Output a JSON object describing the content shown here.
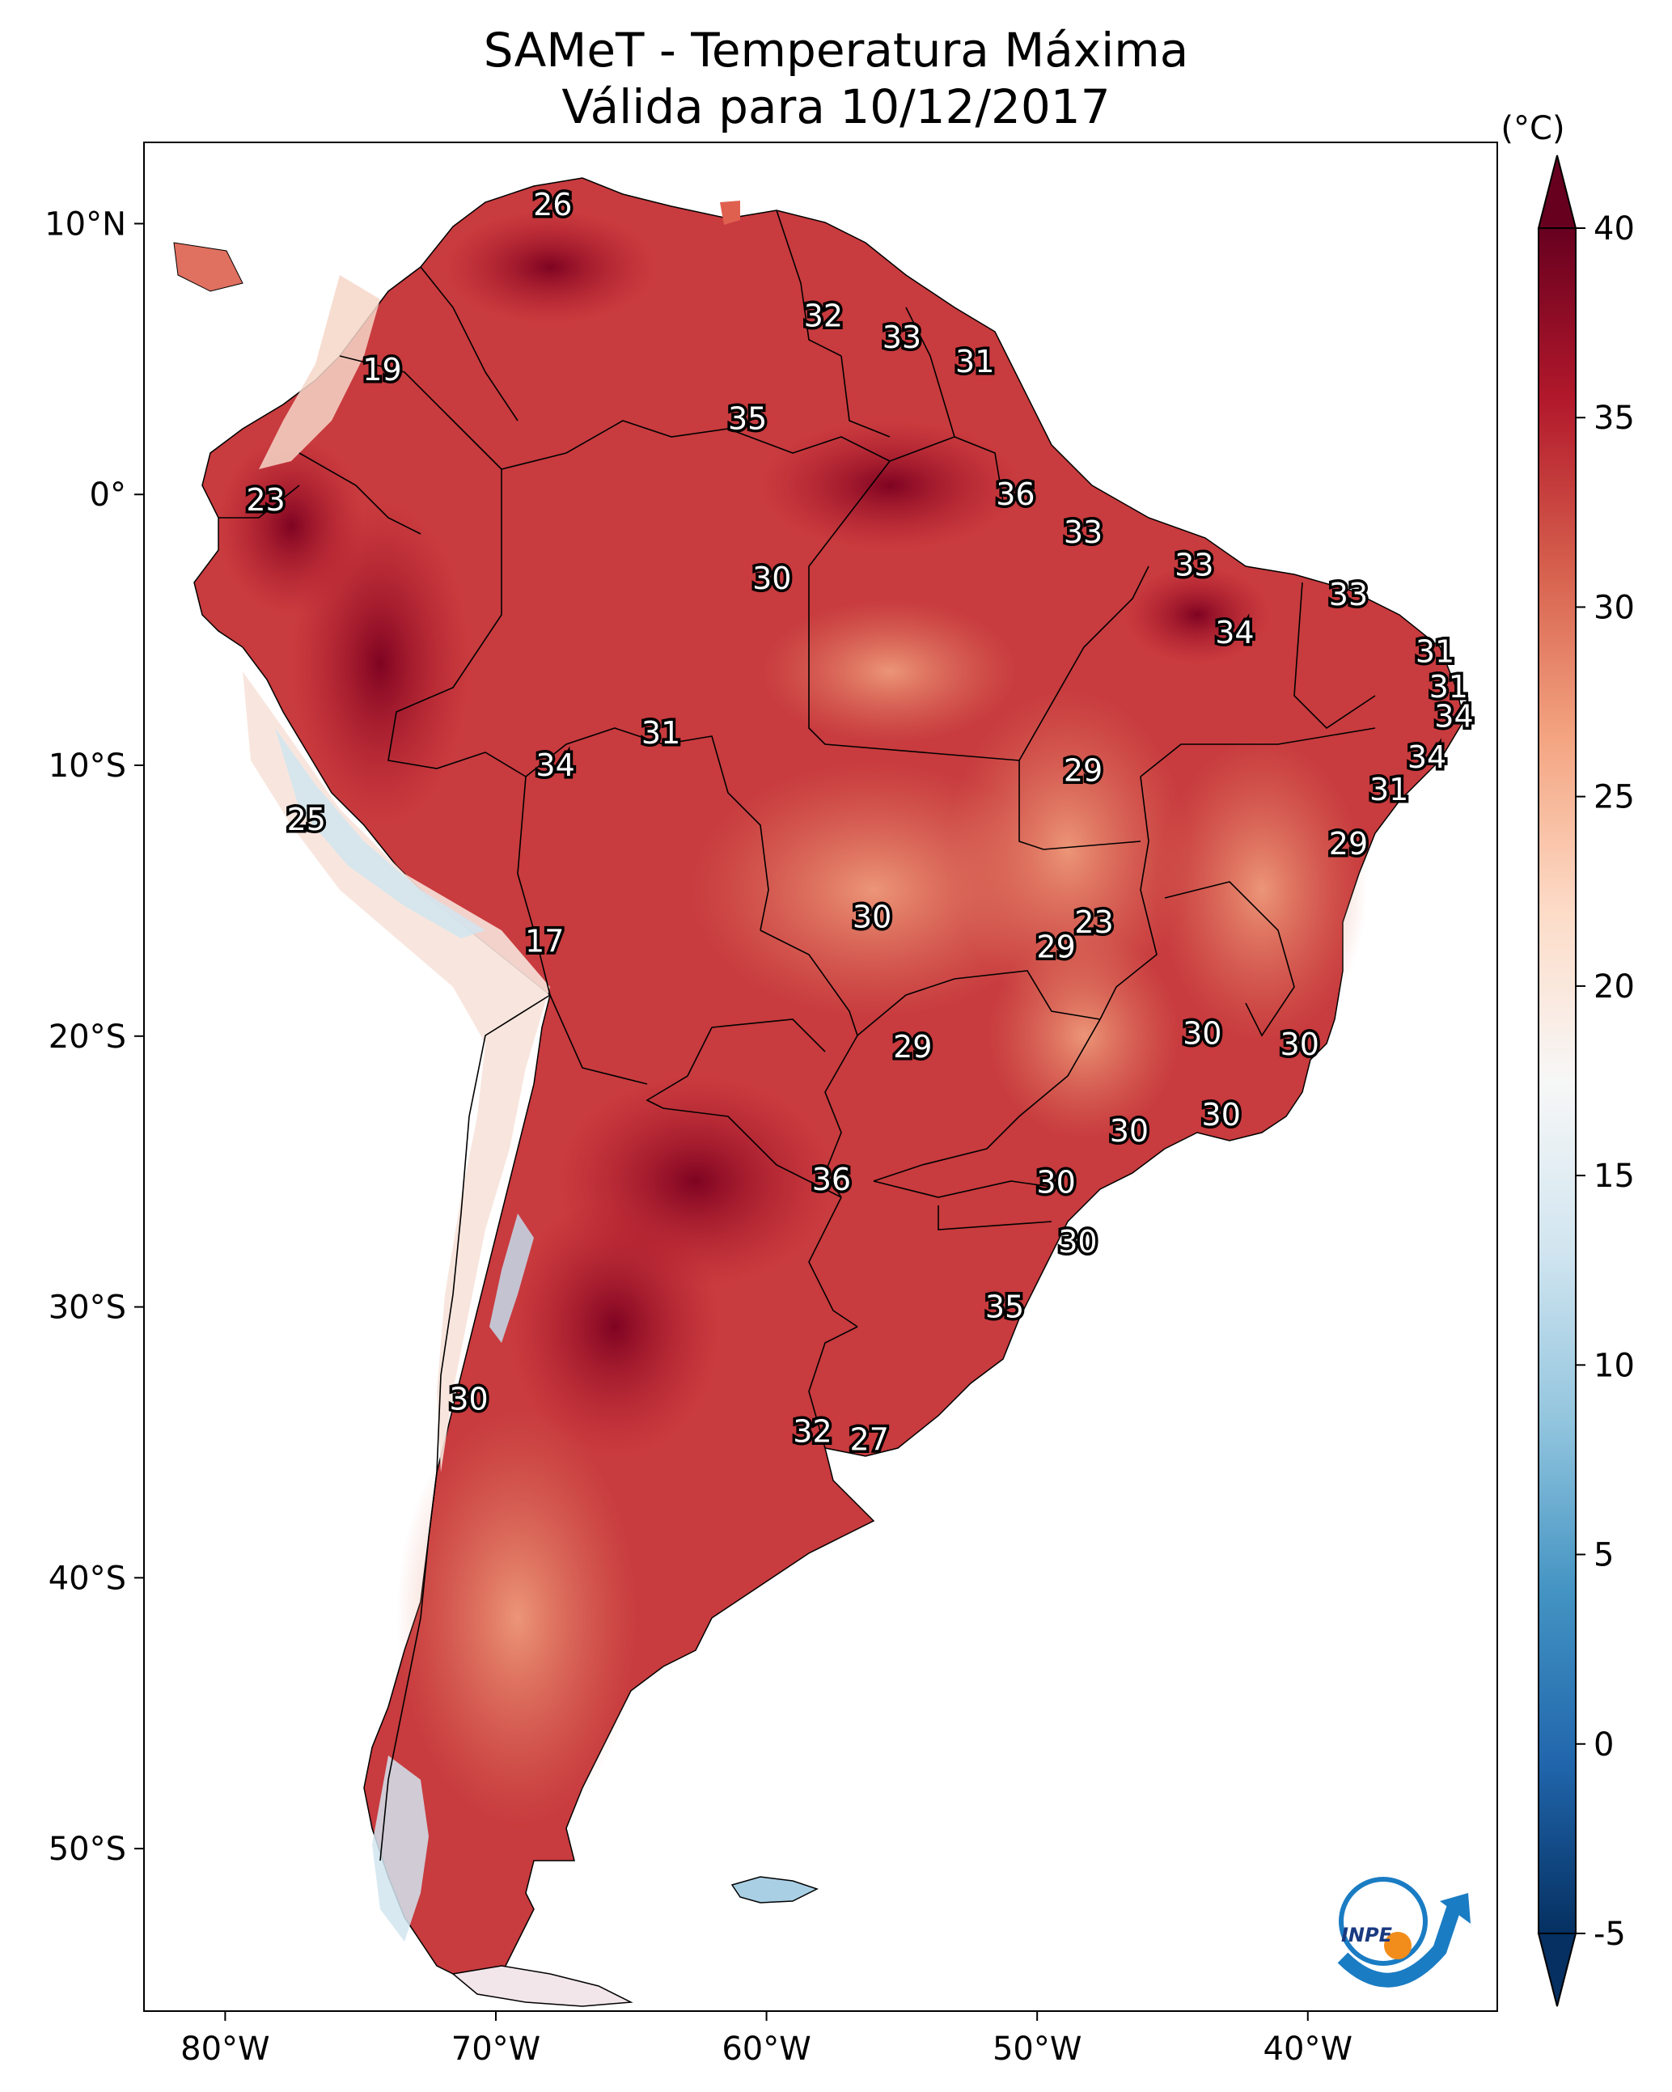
{
  "title": {
    "line1": "SAMeT - Temperatura Máxima",
    "line2": "Válida para 10/12/2017"
  },
  "map": {
    "lon_range": [
      -83,
      -33
    ],
    "lat_range": [
      -56,
      13
    ],
    "lon_ticks": [
      {
        "value": -80,
        "label": "80°W"
      },
      {
        "value": -70,
        "label": "70°W"
      },
      {
        "value": -60,
        "label": "60°W"
      },
      {
        "value": -50,
        "label": "50°W"
      },
      {
        "value": -40,
        "label": "40°W"
      }
    ],
    "lat_ticks": [
      {
        "value": 10,
        "label": "10°N"
      },
      {
        "value": 0,
        "label": "0°"
      },
      {
        "value": -10,
        "label": "10°S"
      },
      {
        "value": -20,
        "label": "20°S"
      },
      {
        "value": -30,
        "label": "30°S"
      },
      {
        "value": -40,
        "label": "40°S"
      },
      {
        "value": -50,
        "label": "50°S"
      }
    ]
  },
  "station_labels": [
    {
      "text": "26",
      "lon": -67.9,
      "lat": 10.7
    },
    {
      "text": "19",
      "lon": -74.2,
      "lat": 4.6
    },
    {
      "text": "32",
      "lon": -57.9,
      "lat": 6.6
    },
    {
      "text": "33",
      "lon": -55.0,
      "lat": 5.8
    },
    {
      "text": "31",
      "lon": -52.3,
      "lat": 4.9
    },
    {
      "text": "35",
      "lon": -60.7,
      "lat": 2.8
    },
    {
      "text": "23",
      "lon": -78.5,
      "lat": -0.2
    },
    {
      "text": "36",
      "lon": -50.8,
      "lat": 0.0
    },
    {
      "text": "33",
      "lon": -48.3,
      "lat": -1.4
    },
    {
      "text": "30",
      "lon": -59.8,
      "lat": -3.1
    },
    {
      "text": "33",
      "lon": -44.2,
      "lat": -2.6
    },
    {
      "text": "33",
      "lon": -38.5,
      "lat": -3.7
    },
    {
      "text": "34",
      "lon": -42.7,
      "lat": -5.1
    },
    {
      "text": "31",
      "lon": -35.3,
      "lat": -5.8
    },
    {
      "text": "31",
      "lon": -34.8,
      "lat": -7.1
    },
    {
      "text": "34",
      "lon": -34.6,
      "lat": -8.2
    },
    {
      "text": "31",
      "lon": -63.9,
      "lat": -8.8
    },
    {
      "text": "34",
      "lon": -67.8,
      "lat": -10.0
    },
    {
      "text": "29",
      "lon": -48.3,
      "lat": -10.2
    },
    {
      "text": "34",
      "lon": -35.6,
      "lat": -9.7
    },
    {
      "text": "31",
      "lon": -37.0,
      "lat": -10.9
    },
    {
      "text": "25",
      "lon": -77.0,
      "lat": -12.0
    },
    {
      "text": "29",
      "lon": -38.5,
      "lat": -12.9
    },
    {
      "text": "30",
      "lon": -56.1,
      "lat": -15.6
    },
    {
      "text": "23",
      "lon": -47.9,
      "lat": -15.8
    },
    {
      "text": "29",
      "lon": -49.3,
      "lat": -16.7
    },
    {
      "text": "17",
      "lon": -68.2,
      "lat": -16.5
    },
    {
      "text": "30",
      "lon": -43.9,
      "lat": -19.9
    },
    {
      "text": "30",
      "lon": -40.3,
      "lat": -20.3
    },
    {
      "text": "29",
      "lon": -54.6,
      "lat": -20.4
    },
    {
      "text": "30",
      "lon": -43.2,
      "lat": -22.9
    },
    {
      "text": "30",
      "lon": -46.6,
      "lat": -23.5
    },
    {
      "text": "36",
      "lon": -57.6,
      "lat": -25.3
    },
    {
      "text": "30",
      "lon": -49.3,
      "lat": -25.4
    },
    {
      "text": "30",
      "lon": -48.5,
      "lat": -27.6
    },
    {
      "text": "35",
      "lon": -51.2,
      "lat": -30.0
    },
    {
      "text": "30",
      "lon": -71.0,
      "lat": -33.4
    },
    {
      "text": "32",
      "lon": -58.3,
      "lat": -34.6
    },
    {
      "text": "27",
      "lon": -56.2,
      "lat": -34.9
    }
  ],
  "colorbar": {
    "unit": "(°C)",
    "min": -5,
    "max": 40,
    "ticks": [
      {
        "value": 40,
        "label": "40"
      },
      {
        "value": 35,
        "label": "35"
      },
      {
        "value": 30,
        "label": "30"
      },
      {
        "value": 25,
        "label": "25"
      },
      {
        "value": 20,
        "label": "20"
      },
      {
        "value": 15,
        "label": "15"
      },
      {
        "value": 10,
        "label": "10"
      },
      {
        "value": 5,
        "label": "5"
      },
      {
        "value": 0,
        "label": "0"
      },
      {
        "value": -5,
        "label": "-5"
      }
    ],
    "colors": [
      "#053061",
      "#2166ac",
      "#4393c3",
      "#92c5de",
      "#d1e5f0",
      "#f7f7f7",
      "#fddbc7",
      "#f4a582",
      "#d6604d",
      "#b2182b",
      "#67001f"
    ]
  },
  "logo": {
    "text": "INPE"
  }
}
